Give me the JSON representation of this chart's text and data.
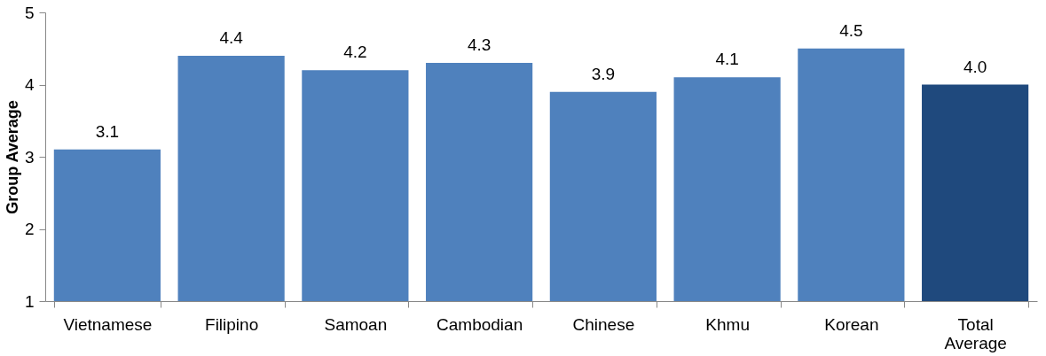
{
  "chart_data": {
    "type": "bar",
    "ylabel": "Group Average",
    "categories": [
      "Vietnamese",
      "Filipino",
      "Samoan",
      "Cambodian",
      "Chinese",
      "Khmu",
      "Korean",
      "Total Average"
    ],
    "values": [
      3.1,
      4.4,
      4.2,
      4.3,
      3.9,
      4.1,
      4.5,
      4.0
    ],
    "value_labels": [
      "3.1",
      "4.4",
      "4.2",
      "4.3",
      "3.9",
      "4.1",
      "4.5",
      "4.0"
    ],
    "colors": [
      "#4f81bd",
      "#4f81bd",
      "#4f81bd",
      "#4f81bd",
      "#4f81bd",
      "#4f81bd",
      "#4f81bd",
      "#1f497d"
    ],
    "ylim": [
      1,
      5
    ],
    "yticks": [
      1,
      2,
      3,
      4,
      5
    ],
    "grid": false
  }
}
